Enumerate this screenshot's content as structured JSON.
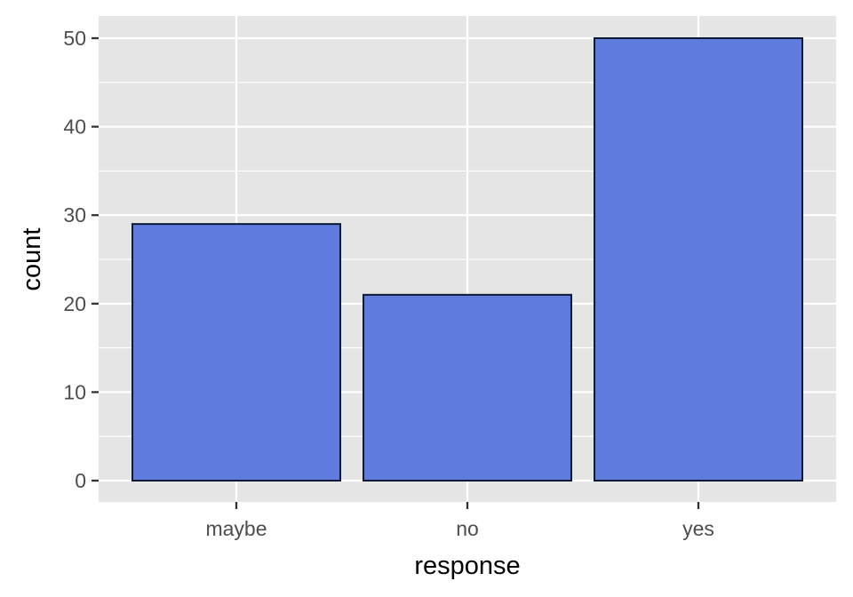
{
  "chart_data": {
    "type": "bar",
    "categories": [
      "maybe",
      "no",
      "yes"
    ],
    "values": [
      29,
      21,
      50
    ],
    "xlabel": "response",
    "ylabel": "count",
    "ylim": [
      0,
      50
    ],
    "yticks": [
      0,
      10,
      20,
      30,
      40,
      50
    ],
    "grid": true,
    "legend": "none",
    "colors": {
      "bar_fill": "#5f7bdd",
      "bar_outline": "#0a1a33",
      "panel_background": "#e5e5e5",
      "grid": "#ffffff",
      "tick_mark": "#333333"
    }
  }
}
